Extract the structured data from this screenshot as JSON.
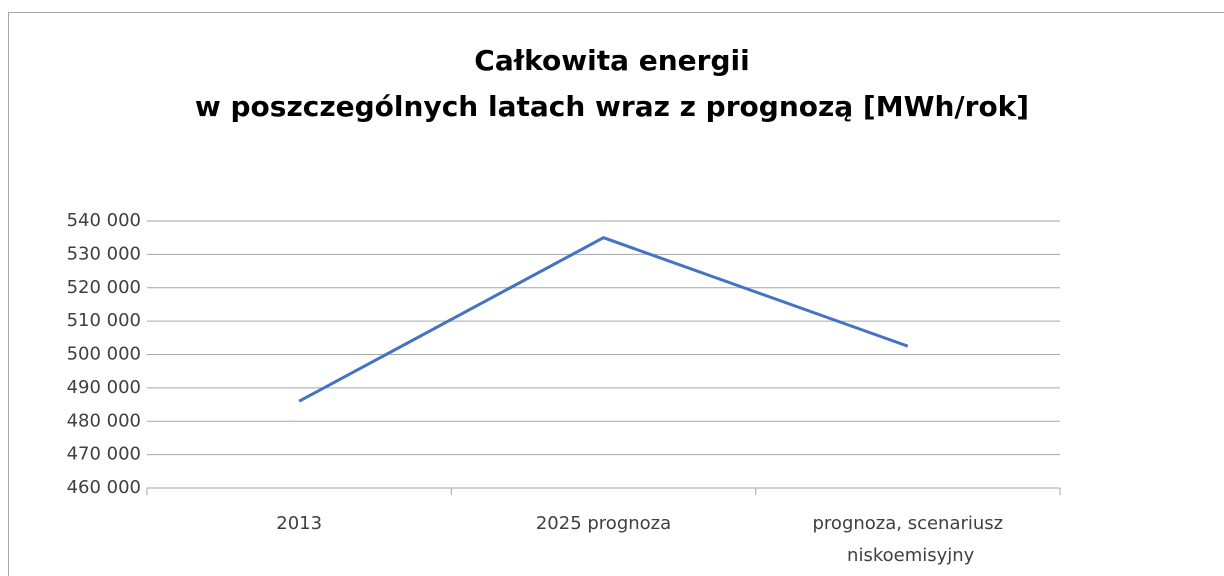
{
  "chart_data": {
    "type": "line",
    "title": [
      "Całkowita energii",
      "w poszczególnych latach wraz z prognozą [MWh/rok]"
    ],
    "categories": [
      "2013",
      "2025 prognoza",
      "prognoza, scenariusz niskoemisyjny"
    ],
    "values": [
      486000,
      535000,
      502500
    ],
    "color": "#4472c4",
    "ylim": [
      460000,
      540000
    ],
    "yticks": [
      {
        "value": 460000,
        "label": "460 000"
      },
      {
        "value": 470000,
        "label": "470 000"
      },
      {
        "value": 480000,
        "label": "480 000"
      },
      {
        "value": 490000,
        "label": "490 000"
      },
      {
        "value": 500000,
        "label": "500 000"
      },
      {
        "value": 510000,
        "label": "510 000"
      },
      {
        "value": 520000,
        "label": "520 000"
      },
      {
        "value": 530000,
        "label": "530 000"
      },
      {
        "value": 540000,
        "label": "540 000"
      }
    ],
    "grid": true
  }
}
